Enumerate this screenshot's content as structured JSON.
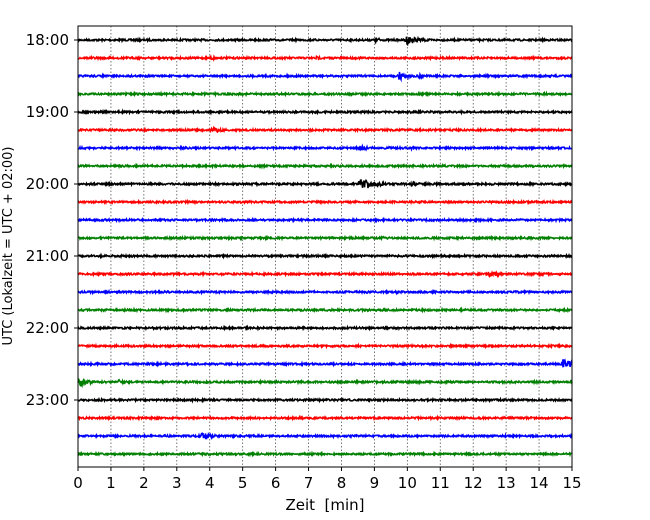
{
  "chart_data": {
    "type": "line",
    "subtype": "helicorder",
    "xlabel": "Zeit  [min]",
    "ylabel": "UTC (Lokalzeit = UTC + 02:00)",
    "xlim": [
      0,
      15
    ],
    "xticks": [
      "0",
      "1",
      "2",
      "3",
      "4",
      "5",
      "6",
      "7",
      "8",
      "9",
      "10",
      "11",
      "12",
      "13",
      "14",
      "15"
    ],
    "ytick_labels": [
      "18:00",
      "19:00",
      "20:00",
      "21:00",
      "22:00",
      "23:00"
    ],
    "grid": "vertical dotted at each minute",
    "colors": [
      "#000000",
      "#ff0000",
      "#0000ff",
      "#008000"
    ],
    "traces": [
      "18:00",
      "18:15",
      "18:30",
      "18:45",
      "19:00",
      "19:15",
      "19:30",
      "19:45",
      "20:00",
      "20:15",
      "20:30",
      "20:45",
      "21:00",
      "21:15",
      "21:30",
      "21:45",
      "22:00",
      "22:15",
      "22:30",
      "22:45",
      "23:00",
      "23:15",
      "23:30",
      "23:45"
    ],
    "events": [
      {
        "trace": 0,
        "min": 9.0,
        "dur": 0.2,
        "amp": 0.25
      },
      {
        "trace": 0,
        "min": 9.9,
        "dur": 0.9,
        "amp": 0.4
      },
      {
        "trace": 1,
        "min": 4.0,
        "dur": 0.3,
        "amp": 0.2
      },
      {
        "trace": 1,
        "min": 7.2,
        "dur": 0.3,
        "amp": 0.15
      },
      {
        "trace": 2,
        "min": 9.7,
        "dur": 0.5,
        "amp": 0.35
      },
      {
        "trace": 2,
        "min": 10.3,
        "dur": 0.2,
        "amp": 0.2
      },
      {
        "trace": 2,
        "min": 11.2,
        "dur": 0.2,
        "amp": 0.12
      },
      {
        "trace": 5,
        "min": 4.0,
        "dur": 0.8,
        "amp": 0.25
      },
      {
        "trace": 6,
        "min": 8.5,
        "dur": 0.5,
        "amp": 0.3
      },
      {
        "trace": 6,
        "min": 9.3,
        "dur": 0.3,
        "amp": 0.15
      },
      {
        "trace": 6,
        "min": 10.1,
        "dur": 0.3,
        "amp": 0.15
      },
      {
        "trace": 8,
        "min": 8.5,
        "dur": 1.0,
        "amp": 0.55
      },
      {
        "trace": 8,
        "min": 10.1,
        "dur": 0.3,
        "amp": 0.3
      },
      {
        "trace": 11,
        "min": 9.2,
        "dur": 0.3,
        "amp": 0.12
      },
      {
        "trace": 13,
        "min": 12.4,
        "dur": 0.8,
        "amp": 0.3
      },
      {
        "trace": 13,
        "min": 14.0,
        "dur": 0.3,
        "amp": 0.15
      },
      {
        "trace": 14,
        "min": 8.2,
        "dur": 0.2,
        "amp": 0.08
      },
      {
        "trace": 14,
        "min": 9.6,
        "dur": 0.4,
        "amp": 0.15
      },
      {
        "trace": 18,
        "min": 14.7,
        "dur": 0.3,
        "amp": 0.55
      },
      {
        "trace": 19,
        "min": 0.0,
        "dur": 0.5,
        "amp": 0.4
      },
      {
        "trace": 19,
        "min": 1.2,
        "dur": 0.3,
        "amp": 0.2
      },
      {
        "trace": 21,
        "min": 0.0,
        "dur": 0.3,
        "amp": 0.1
      },
      {
        "trace": 22,
        "min": 2.6,
        "dur": 0.3,
        "amp": 0.15
      },
      {
        "trace": 22,
        "min": 3.7,
        "dur": 0.8,
        "amp": 0.3
      }
    ]
  }
}
